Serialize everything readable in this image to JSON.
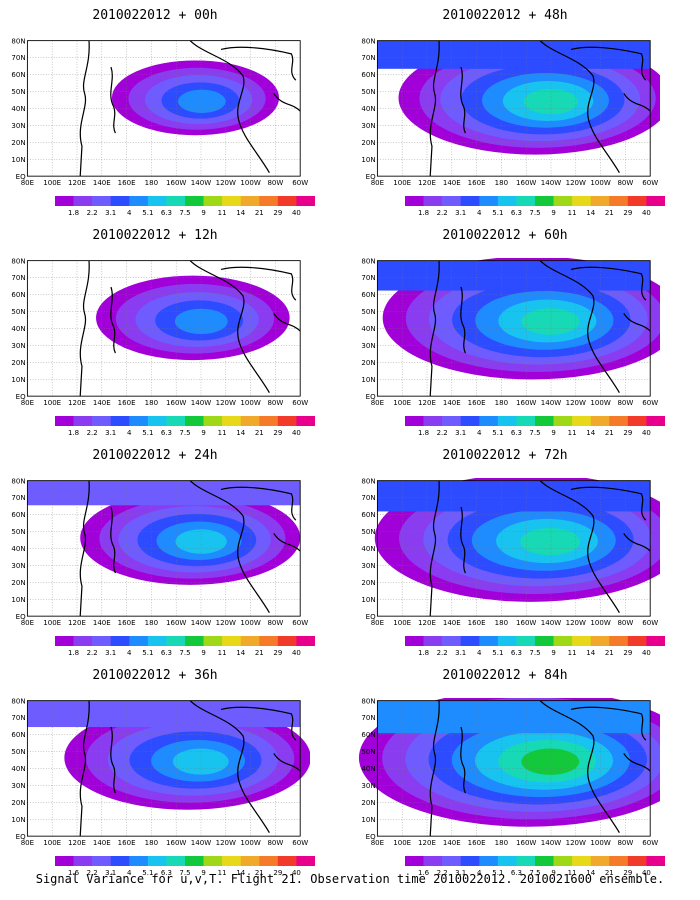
{
  "caption": "Signal Variance for u,v,T. Flight 21. Observation time 2010022012. 2010021600 ensemble.",
  "colorbar": {
    "labels": [
      "1.8",
      "2.2",
      "3.1",
      "4",
      "5.1",
      "6.3",
      "7.5",
      "9",
      "11",
      "14",
      "21",
      "29",
      "40"
    ],
    "labels_alt": [
      "1.6",
      "2.2",
      "3.1",
      "4",
      "5.1",
      "6.3",
      "7.5",
      "9",
      "11",
      "14",
      "21",
      "29",
      "40"
    ],
    "colors": [
      "#a100d8",
      "#8a3cf0",
      "#6e5cff",
      "#2d4bff",
      "#1e8cff",
      "#19c3ef",
      "#17d9b5",
      "#14c83c",
      "#9fd817",
      "#e8d81a",
      "#f0a92a",
      "#f57a2a",
      "#f23a2a",
      "#e8008c"
    ]
  },
  "xticks": [
    "80E",
    "100E",
    "120E",
    "140E",
    "160E",
    "180",
    "160W",
    "140W",
    "120W",
    "100W",
    "80W",
    "60W"
  ],
  "yticks": [
    "80N",
    "70N",
    "60N",
    "50N",
    "40N",
    "30N",
    "20N",
    "10N",
    "EQ"
  ],
  "chart_data": [
    {
      "type": "heatmap",
      "title": "2010022012 + 00h",
      "lead_h": 0,
      "x": [
        "80E",
        "60W"
      ],
      "y": [
        "EQ",
        "80N"
      ],
      "spread": 0.3
    },
    {
      "type": "heatmap",
      "title": "2010022012 + 48h",
      "lead_h": 48,
      "x": [
        "80E",
        "60W"
      ],
      "y": [
        "EQ",
        "80N"
      ],
      "spread": 0.7
    },
    {
      "type": "heatmap",
      "title": "2010022012 + 12h",
      "lead_h": 12,
      "x": [
        "80E",
        "60W"
      ],
      "y": [
        "EQ",
        "80N"
      ],
      "spread": 0.4
    },
    {
      "type": "heatmap",
      "title": "2010022012 + 60h",
      "lead_h": 60,
      "x": [
        "80E",
        "60W"
      ],
      "y": [
        "EQ",
        "80N"
      ],
      "spread": 0.8
    },
    {
      "type": "heatmap",
      "title": "2010022012 + 24h",
      "lead_h": 24,
      "x": [
        "80E",
        "60W"
      ],
      "y": [
        "EQ",
        "80N"
      ],
      "spread": 0.5
    },
    {
      "type": "heatmap",
      "title": "2010022012 + 72h",
      "lead_h": 72,
      "x": [
        "80E",
        "60W"
      ],
      "y": [
        "EQ",
        "80N"
      ],
      "spread": 0.85
    },
    {
      "type": "heatmap",
      "title": "2010022012 + 36h",
      "lead_h": 36,
      "x": [
        "80E",
        "60W"
      ],
      "y": [
        "EQ",
        "80N"
      ],
      "spread": 0.6
    },
    {
      "type": "heatmap",
      "title": "2010022012 + 84h",
      "lead_h": 84,
      "x": [
        "80E",
        "60W"
      ],
      "y": [
        "EQ",
        "80N"
      ],
      "spread": 0.95
    }
  ]
}
